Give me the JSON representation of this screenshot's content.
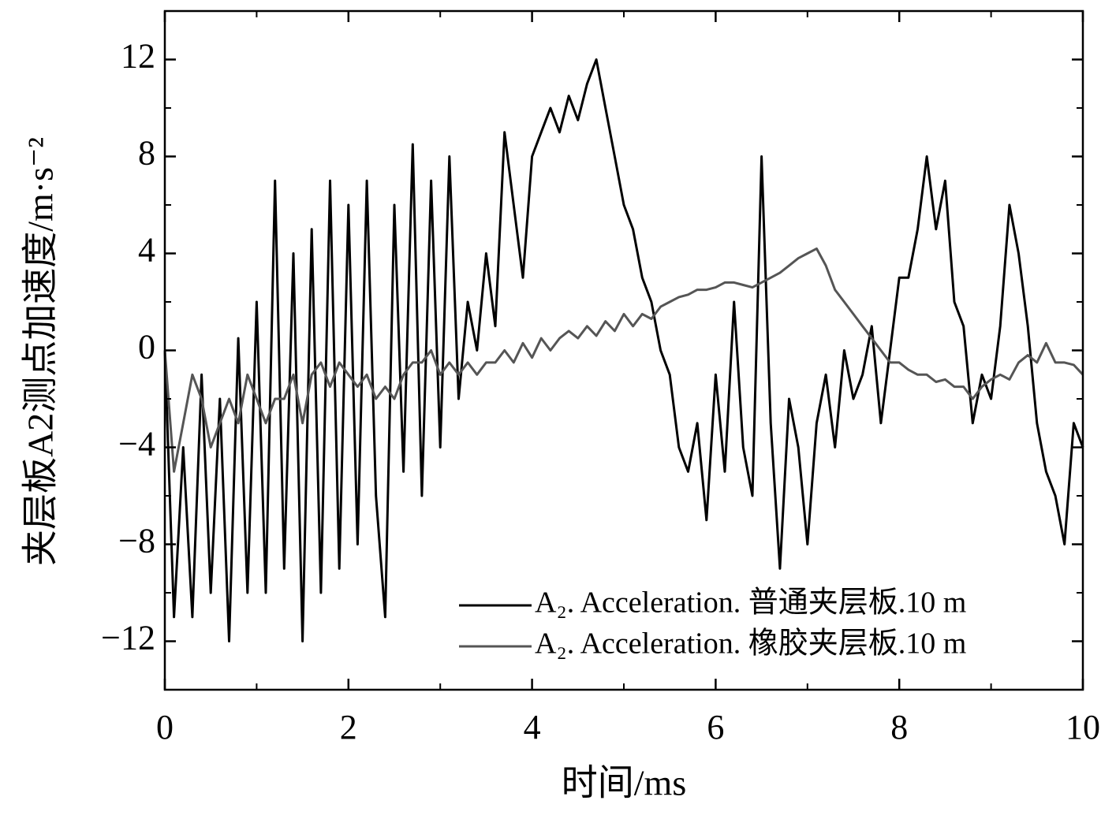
{
  "chart_data": {
    "type": "line",
    "xlabel": "时间/ms",
    "ylabel": "夹层板A2测点加速度/m·s⁻²",
    "x": [
      0,
      0.1,
      0.2,
      0.3,
      0.4,
      0.5,
      0.6,
      0.7,
      0.8,
      0.9,
      1,
      1.1,
      1.2,
      1.3,
      1.4,
      1.5,
      1.6,
      1.7,
      1.8,
      1.9,
      2,
      2.1,
      2.2,
      2.3,
      2.4,
      2.5,
      2.6,
      2.7,
      2.8,
      2.9,
      3,
      3.1,
      3.2,
      3.3,
      3.4,
      3.5,
      3.6,
      3.7,
      3.8,
      3.9,
      4,
      4.1,
      4.2,
      4.3,
      4.4,
      4.5,
      4.6,
      4.7,
      4.8,
      4.9,
      5,
      5.1,
      5.2,
      5.3,
      5.4,
      5.5,
      5.6,
      5.7,
      5.8,
      5.9,
      6,
      6.1,
      6.2,
      6.3,
      6.4,
      6.5,
      6.6,
      6.7,
      6.8,
      6.9,
      7,
      7.1,
      7.2,
      7.3,
      7.4,
      7.5,
      7.6,
      7.7,
      7.8,
      7.9,
      8,
      8.1,
      8.2,
      8.3,
      8.4,
      8.5,
      8.6,
      8.7,
      8.8,
      8.9,
      9,
      9.1,
      9.2,
      9.3,
      9.4,
      9.5,
      9.6,
      9.7,
      9.8,
      9.9,
      10
    ],
    "series": [
      {
        "name": "A₂. Acceleration. 普通夹层板.10 m",
        "color": "#000000",
        "values": [
          0,
          -11,
          -4,
          -11,
          -1,
          -10,
          -2,
          -12,
          0.5,
          -10,
          2,
          -10,
          7,
          -9,
          4,
          -12,
          5,
          -10,
          7,
          -9,
          6,
          -8,
          7,
          -6,
          -11,
          6,
          -5,
          8.5,
          -6,
          7,
          -4,
          8,
          -2,
          2,
          0,
          4,
          1,
          9,
          6,
          3,
          8,
          9,
          10,
          9,
          10.5,
          9.5,
          11,
          12,
          10,
          8,
          6,
          5,
          3,
          2,
          0,
          -1,
          -4,
          -5,
          -3,
          -7,
          -1,
          -5,
          2,
          -4,
          -6,
          8,
          -3,
          -9,
          -2,
          -4,
          -8,
          -3,
          -1,
          -4,
          0,
          -2,
          -1,
          1,
          -3,
          0,
          3,
          3,
          5,
          8,
          5,
          7,
          2,
          1,
          -3,
          -1,
          -2,
          1,
          6,
          4,
          1,
          -3,
          -5,
          -6,
          -8,
          -3,
          -4
        ]
      },
      {
        "name": "A₂. Acceleration. 橡胶夹层板.10 m",
        "color": "#555555",
        "values": [
          0,
          -5,
          -3,
          -1,
          -2,
          -4,
          -3,
          -2,
          -3,
          -1,
          -2,
          -3,
          -2,
          -2,
          -1,
          -3,
          -1,
          -0.5,
          -1.5,
          -0.5,
          -1,
          -1.5,
          -1,
          -2,
          -1.5,
          -2,
          -1,
          -0.5,
          -0.5,
          0,
          -1,
          -0.5,
          -1,
          -0.5,
          -1,
          -0.5,
          -0.5,
          0,
          -0.5,
          0.3,
          -0.3,
          0.5,
          0,
          0.5,
          0.8,
          0.5,
          1,
          0.6,
          1.2,
          0.8,
          1.5,
          1,
          1.5,
          1.3,
          1.8,
          2,
          2.2,
          2.3,
          2.5,
          2.5,
          2.6,
          2.8,
          2.8,
          2.7,
          2.6,
          2.8,
          3,
          3.2,
          3.5,
          3.8,
          4,
          4.2,
          3.5,
          2.5,
          2,
          1.5,
          1,
          0.5,
          0,
          -0.5,
          -0.5,
          -0.8,
          -1,
          -1,
          -1.3,
          -1.2,
          -1.5,
          -1.5,
          -2,
          -1.5,
          -1.2,
          -1,
          -1.2,
          -0.5,
          -0.2,
          -0.5,
          0.3,
          -0.5,
          -0.5,
          -0.6,
          -1
        ]
      }
    ],
    "xlim": [
      0,
      10
    ],
    "xticks": [
      0,
      2,
      4,
      6,
      8,
      10
    ],
    "xminorticks": [
      1,
      3,
      5,
      7,
      9
    ],
    "ylim": [
      -14,
      14
    ],
    "yticks": [
      {
        "value": -12,
        "label": "−12"
      },
      {
        "value": -8,
        "label": "−8"
      },
      {
        "value": -4,
        "label": "−4"
      },
      0,
      4,
      8,
      12
    ],
    "yminorticks": [
      -10,
      -6,
      -2,
      2,
      6,
      10
    ],
    "legend": "lower right"
  }
}
